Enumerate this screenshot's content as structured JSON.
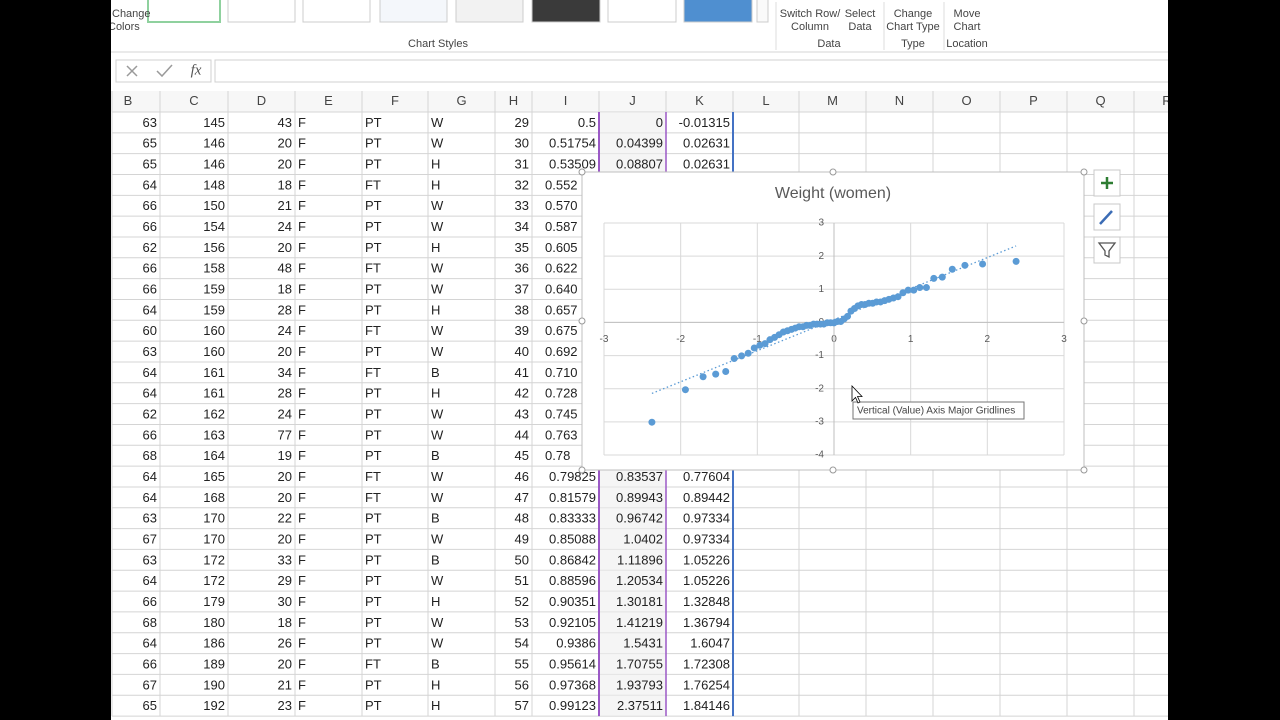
{
  "ribbon": {
    "change_colors": [
      "Change",
      "Colors"
    ],
    "chart_styles": "Chart Styles",
    "switch_row_column": [
      "Switch Row/",
      "Column"
    ],
    "select_data": [
      "Select",
      "Data"
    ],
    "data_group": "Data",
    "change_chart_type": [
      "Change",
      "Chart Type"
    ],
    "type_group": "Type",
    "move_chart": [
      "Move",
      "Chart"
    ],
    "location_group": "Location"
  },
  "formula_bar": {
    "function_label": "fx"
  },
  "sheet": {
    "columns": [
      "B",
      "C",
      "D",
      "E",
      "F",
      "G",
      "H",
      "I",
      "J",
      "K",
      "L",
      "M",
      "N",
      "O",
      "P",
      "Q",
      "R"
    ],
    "rows": [
      [
        "63",
        "145",
        "43",
        "F",
        "PT",
        "W",
        "29",
        "0.5",
        "0",
        "-0.01315"
      ],
      [
        "65",
        "146",
        "20",
        "F",
        "PT",
        "W",
        "30",
        "0.51754",
        "0.04399",
        "0.02631"
      ],
      [
        "65",
        "146",
        "20",
        "F",
        "PT",
        "H",
        "31",
        "0.53509",
        "0.08807",
        "0.02631"
      ],
      [
        "64",
        "148",
        "18",
        "F",
        "FT",
        "H",
        "32",
        "0.552"
      ],
      [
        "66",
        "150",
        "21",
        "F",
        "PT",
        "W",
        "33",
        "0.570"
      ],
      [
        "66",
        "154",
        "24",
        "F",
        "PT",
        "W",
        "34",
        "0.587"
      ],
      [
        "62",
        "156",
        "20",
        "F",
        "PT",
        "H",
        "35",
        "0.605"
      ],
      [
        "66",
        "158",
        "48",
        "F",
        "FT",
        "W",
        "36",
        "0.622"
      ],
      [
        "66",
        "159",
        "18",
        "F",
        "PT",
        "W",
        "37",
        "0.640"
      ],
      [
        "64",
        "159",
        "28",
        "F",
        "PT",
        "H",
        "38",
        "0.657"
      ],
      [
        "60",
        "160",
        "24",
        "F",
        "FT",
        "W",
        "39",
        "0.675"
      ],
      [
        "63",
        "160",
        "20",
        "F",
        "PT",
        "W",
        "40",
        "0.692"
      ],
      [
        "64",
        "161",
        "34",
        "F",
        "FT",
        "B",
        "41",
        "0.710"
      ],
      [
        "64",
        "161",
        "28",
        "F",
        "PT",
        "H",
        "42",
        "0.728"
      ],
      [
        "62",
        "162",
        "24",
        "F",
        "PT",
        "W",
        "43",
        "0.745"
      ],
      [
        "66",
        "163",
        "77",
        "F",
        "PT",
        "W",
        "44",
        "0.763"
      ],
      [
        "68",
        "164",
        "19",
        "F",
        "PT",
        "B",
        "45",
        "0.78"
      ],
      [
        "64",
        "165",
        "20",
        "F",
        "FT",
        "W",
        "46",
        "0.79825",
        "0.83537",
        "0.77604"
      ],
      [
        "64",
        "168",
        "20",
        "F",
        "FT",
        "W",
        "47",
        "0.81579",
        "0.89943",
        "0.89442"
      ],
      [
        "63",
        "170",
        "22",
        "F",
        "PT",
        "B",
        "48",
        "0.83333",
        "0.96742",
        "0.97334"
      ],
      [
        "67",
        "170",
        "20",
        "F",
        "PT",
        "W",
        "49",
        "0.85088",
        "1.0402",
        "0.97334"
      ],
      [
        "63",
        "172",
        "33",
        "F",
        "PT",
        "B",
        "50",
        "0.86842",
        "1.11896",
        "1.05226"
      ],
      [
        "64",
        "172",
        "29",
        "F",
        "PT",
        "W",
        "51",
        "0.88596",
        "1.20534",
        "1.05226"
      ],
      [
        "66",
        "179",
        "30",
        "F",
        "PT",
        "H",
        "52",
        "0.90351",
        "1.30181",
        "1.32848"
      ],
      [
        "68",
        "180",
        "18",
        "F",
        "PT",
        "W",
        "53",
        "0.92105",
        "1.41219",
        "1.36794"
      ],
      [
        "64",
        "186",
        "26",
        "F",
        "PT",
        "W",
        "54",
        "0.9386",
        "1.5431",
        "1.6047"
      ],
      [
        "66",
        "189",
        "20",
        "F",
        "FT",
        "B",
        "55",
        "0.95614",
        "1.70755",
        "1.72308"
      ],
      [
        "67",
        "190",
        "21",
        "F",
        "PT",
        "H",
        "56",
        "0.97368",
        "1.93793",
        "1.76254"
      ],
      [
        "65",
        "192",
        "23",
        "F",
        "PT",
        "H",
        "57",
        "0.99123",
        "2.37511",
        "1.84146"
      ]
    ]
  },
  "chart_data": {
    "type": "scatter",
    "title": "Weight (women)",
    "color": "#5b9bd5",
    "grid": true,
    "trendline": "linear",
    "xlim": [
      -3,
      3
    ],
    "xticks": [
      -3,
      -2,
      -1,
      0,
      1,
      2,
      3
    ],
    "ylim": [
      -4,
      3
    ],
    "yticks": [
      -4,
      -3,
      -2,
      -1,
      0,
      1,
      2,
      3
    ],
    "x": [
      -2.37511,
      -1.93793,
      -1.70755,
      -1.5431,
      -1.41219,
      -1.30181,
      -1.20534,
      -1.11896,
      -1.0402,
      -0.96742,
      -0.89943,
      -0.83537,
      -0.775,
      -0.7163,
      -0.6609,
      -0.607,
      -0.5549,
      -0.5046,
      -0.4549,
      -0.4049,
      -0.3582,
      -0.3122,
      -0.2667,
      -0.2216,
      -0.1768,
      -0.1323,
      -0.08807,
      -0.04399,
      0,
      0.04399,
      0.08807,
      0.1323,
      0.1768,
      0.2216,
      0.2667,
      0.3122,
      0.3582,
      0.4049,
      0.4549,
      0.5046,
      0.5549,
      0.607,
      0.6609,
      0.7163,
      0.775,
      0.83537,
      0.89943,
      0.96742,
      1.0402,
      1.11896,
      1.20534,
      1.30181,
      1.41219,
      1.5431,
      1.70755,
      1.93793,
      2.37511
    ],
    "values": [
      -3.01,
      -2.03,
      -1.64,
      -1.56,
      -1.48,
      -1.09,
      -1.01,
      -0.93,
      -0.77,
      -0.69,
      -0.64,
      -0.52,
      -0.45,
      -0.37,
      -0.29,
      -0.25,
      -0.21,
      -0.17,
      -0.13,
      -0.13,
      -0.09,
      -0.09,
      -0.05,
      -0.05,
      -0.05,
      -0.05,
      -0.01,
      -0.01,
      -0.01315,
      0.02631,
      0.02631,
      0.1052,
      0.1841,
      0.3419,
      0.4208,
      0.4998,
      0.5392,
      0.5392,
      0.5787,
      0.5787,
      0.6182,
      0.6182,
      0.6576,
      0.6971,
      0.7365,
      0.77604,
      0.89442,
      0.97334,
      0.97334,
      1.05226,
      1.05226,
      1.32848,
      1.36794,
      1.6047,
      1.72308,
      1.76254,
      1.84146
    ]
  },
  "tooltip": "Vertical (Value) Axis Major Gridlines"
}
